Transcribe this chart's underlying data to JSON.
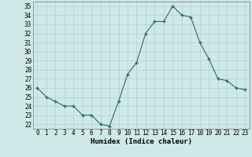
{
  "x": [
    0,
    1,
    2,
    3,
    4,
    5,
    6,
    7,
    8,
    9,
    10,
    11,
    12,
    13,
    14,
    15,
    16,
    17,
    18,
    19,
    20,
    21,
    22,
    23
  ],
  "y": [
    26,
    25,
    24.5,
    24,
    24,
    23,
    23,
    22,
    21.8,
    24.5,
    27.5,
    28.8,
    32,
    33.3,
    33.3,
    35,
    34,
    33.8,
    31,
    29.2,
    27,
    26.8,
    26,
    25.8
  ],
  "line_color": "#2d6b5e",
  "marker_color": "#2d6b5e",
  "bg_color": "#cfe8e8",
  "grid_color": "#b0d0d0",
  "xlabel": "Humidex (Indice chaleur)",
  "xlim": [
    -0.5,
    23.5
  ],
  "ylim": [
    21.5,
    35.5
  ],
  "yticks": [
    22,
    23,
    24,
    25,
    26,
    27,
    28,
    29,
    30,
    31,
    32,
    33,
    34,
    35
  ],
  "xtick_labels": [
    "0",
    "1",
    "2",
    "3",
    "4",
    "5",
    "6",
    "7",
    "8",
    "9",
    "10",
    "11",
    "12",
    "13",
    "14",
    "15",
    "16",
    "17",
    "18",
    "19",
    "20",
    "21",
    "22",
    "23"
  ],
  "xlabel_fontsize": 6.5,
  "tick_fontsize": 5.5
}
